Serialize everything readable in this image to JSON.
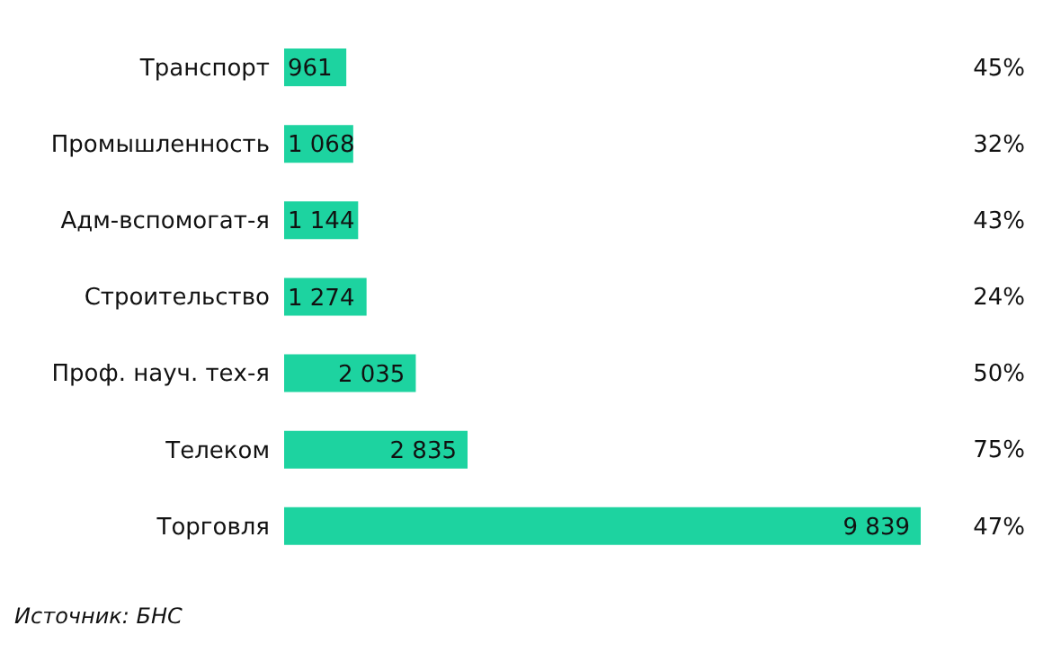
{
  "chart_data": {
    "type": "bar",
    "orientation": "horizontal",
    "categories": [
      "Транспорт",
      "Промышленность",
      "Адм-вспомогат-я",
      "Строительство",
      "Проф. науч. тех-я",
      "Телеком",
      "Торговля"
    ],
    "values": [
      961,
      1068,
      1144,
      1274,
      2035,
      2835,
      9839
    ],
    "color": "#1dd3a0",
    "data_labels": true,
    "grid": false,
    "legend": false,
    "annotations": [
      "45%",
      "32%",
      "43%",
      "24%",
      "50%",
      "75%",
      "47%",
      "Источник: БНС"
    ]
  }
}
